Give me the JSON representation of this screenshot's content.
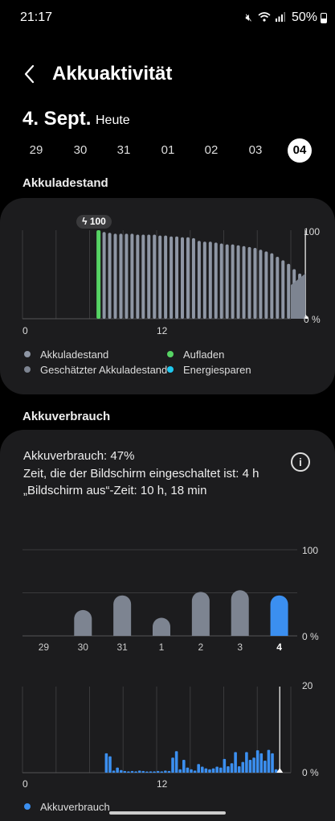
{
  "status_bar": {
    "time": "21:17",
    "battery_percent": "50%",
    "icons": [
      "mute-icon",
      "wifi-icon",
      "signal-icon",
      "battery-icon"
    ]
  },
  "header": {
    "title": "Akkuaktivität",
    "back_icon": "chevron-left-icon"
  },
  "date": {
    "main": "4. Sept.",
    "sub": "Heute"
  },
  "days": [
    {
      "label": "29",
      "active": false
    },
    {
      "label": "30",
      "active": false
    },
    {
      "label": "31",
      "active": false
    },
    {
      "label": "01",
      "active": false
    },
    {
      "label": "02",
      "active": false
    },
    {
      "label": "03",
      "active": false
    },
    {
      "label": "04",
      "active": true
    }
  ],
  "battery_level": {
    "section_title": "Akkuladestand",
    "charge_badge": "100",
    "y_max_label": "100",
    "y_min_label": "0 %",
    "x_labels": [
      "0",
      "12"
    ],
    "legend": [
      {
        "label": "Akkuladestand",
        "color": "#8e96a4"
      },
      {
        "label": "Aufladen",
        "color": "#56d364"
      },
      {
        "label": "Geschätzter Akkuladestand",
        "color": "#7d8491"
      },
      {
        "label": "Energiesparen",
        "color": "#1ec8ef"
      }
    ]
  },
  "battery_usage": {
    "section_title": "Akkuverbrauch",
    "usage_line": "Akkuverbrauch: 47%",
    "screen_on_line": "Zeit, die der Bildschirm eingeschaltet ist: 4 h",
    "screen_off_line": "„Bildschirm aus“-Zeit: 10 h, 18 min",
    "info_icon": "info-icon",
    "daily_y_max_label": "100",
    "daily_y_min_label": "0 %",
    "hourly_y_max_label": "20",
    "hourly_y_min_label": "0 %",
    "hourly_x_labels": [
      "0",
      "12"
    ],
    "legend_label": "Akkuverbrauch",
    "legend_color": "#3b8ff0"
  },
  "chart_data": [
    {
      "type": "bar",
      "title": "Akkuladestand",
      "x_range_hours": [
        0,
        24
      ],
      "ylim": [
        0,
        100
      ],
      "hours_start": 7,
      "charging_value": 100,
      "values": [
        98,
        97,
        96,
        96,
        96,
        96,
        95,
        95,
        95,
        95,
        94,
        94,
        93,
        93,
        92,
        92,
        91,
        88,
        87,
        87,
        86,
        85,
        84,
        84,
        83,
        82,
        81,
        80,
        78,
        76,
        74,
        70,
        66,
        62,
        56,
        51
      ],
      "estimated": {
        "from": 51,
        "to": 38
      },
      "colors": {
        "level": "#8e96a4",
        "charging": "#56d364",
        "estimated": "#7d8491"
      }
    },
    {
      "type": "bar",
      "title": "Akkuverbrauch",
      "categories": [
        "29",
        "30",
        "31",
        "1",
        "2",
        "3",
        "4"
      ],
      "values": [
        0,
        30,
        47,
        21,
        51,
        53,
        47
      ],
      "ylim": [
        0,
        100
      ],
      "highlight_index": 6,
      "colors": {
        "default": "#7d8491",
        "highlight": "#3b8ff0"
      }
    },
    {
      "type": "bar",
      "title": "Akkuverbrauch",
      "x_range_hours": [
        0,
        24
      ],
      "ylim": [
        0,
        20
      ],
      "hours_start": 7.5,
      "values": [
        4.5,
        3.8,
        0.5,
        1.2,
        0.6,
        0.4,
        0.3,
        0.4,
        0.3,
        0.5,
        0.4,
        0.2,
        0.3,
        0.3,
        0.4,
        0.3,
        0.5,
        0.4,
        3.5,
        5,
        0.8,
        3,
        1.2,
        0.8,
        0.5,
        2,
        1.4,
        1,
        0.8,
        1,
        1.4,
        1.2,
        3.2,
        1.5,
        2.2,
        4.8,
        1.5,
        2.5,
        4.8,
        3,
        3.5,
        5.2,
        4.5,
        2.8,
        5.3,
        4.5,
        0.8
      ],
      "color": "#3b8ff0"
    }
  ]
}
